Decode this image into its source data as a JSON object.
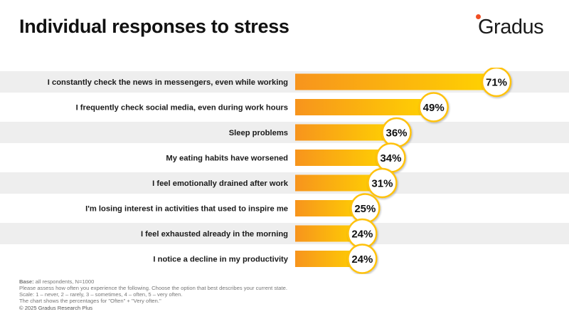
{
  "title": "Individual responses to stress",
  "logo": {
    "text": "Gradus",
    "dot_color": "#f04e23"
  },
  "chart_data": {
    "type": "bar",
    "orientation": "horizontal",
    "title": "Individual responses to stress",
    "unit": "%",
    "categories": [
      "I constantly check the news in messengers, even while working",
      "I frequently check social media, even during work hours",
      "Sleep problems",
      "My eating habits have worsened",
      "I feel emotionally drained after work",
      "I'm losing interest in activities that used to inspire me",
      "I feel exhausted already in the morning",
      "I notice a decline in my productivity"
    ],
    "values": [
      71,
      49,
      36,
      34,
      31,
      25,
      24,
      24
    ],
    "xlim": [
      0,
      100
    ],
    "colors": {
      "bar_start": "#f7941d",
      "bar_end": "#ffd400",
      "band": "#eeeeee",
      "badge_border": "#ffc20e"
    }
  },
  "footer": {
    "base_label": "Base:",
    "base_value": " all respondents, N=1000",
    "lines": [
      "Please assess how often you experience the following. Choose the option that best describes your current state.",
      "Scale: 1 – never, 2 – rarely, 3 – sometimes, 4 – often, 5 – very often.",
      "The chart shows the percentages for \"Often\" + \"Very often.\""
    ],
    "copyright": "© 2025 Gradus Research Plus"
  }
}
